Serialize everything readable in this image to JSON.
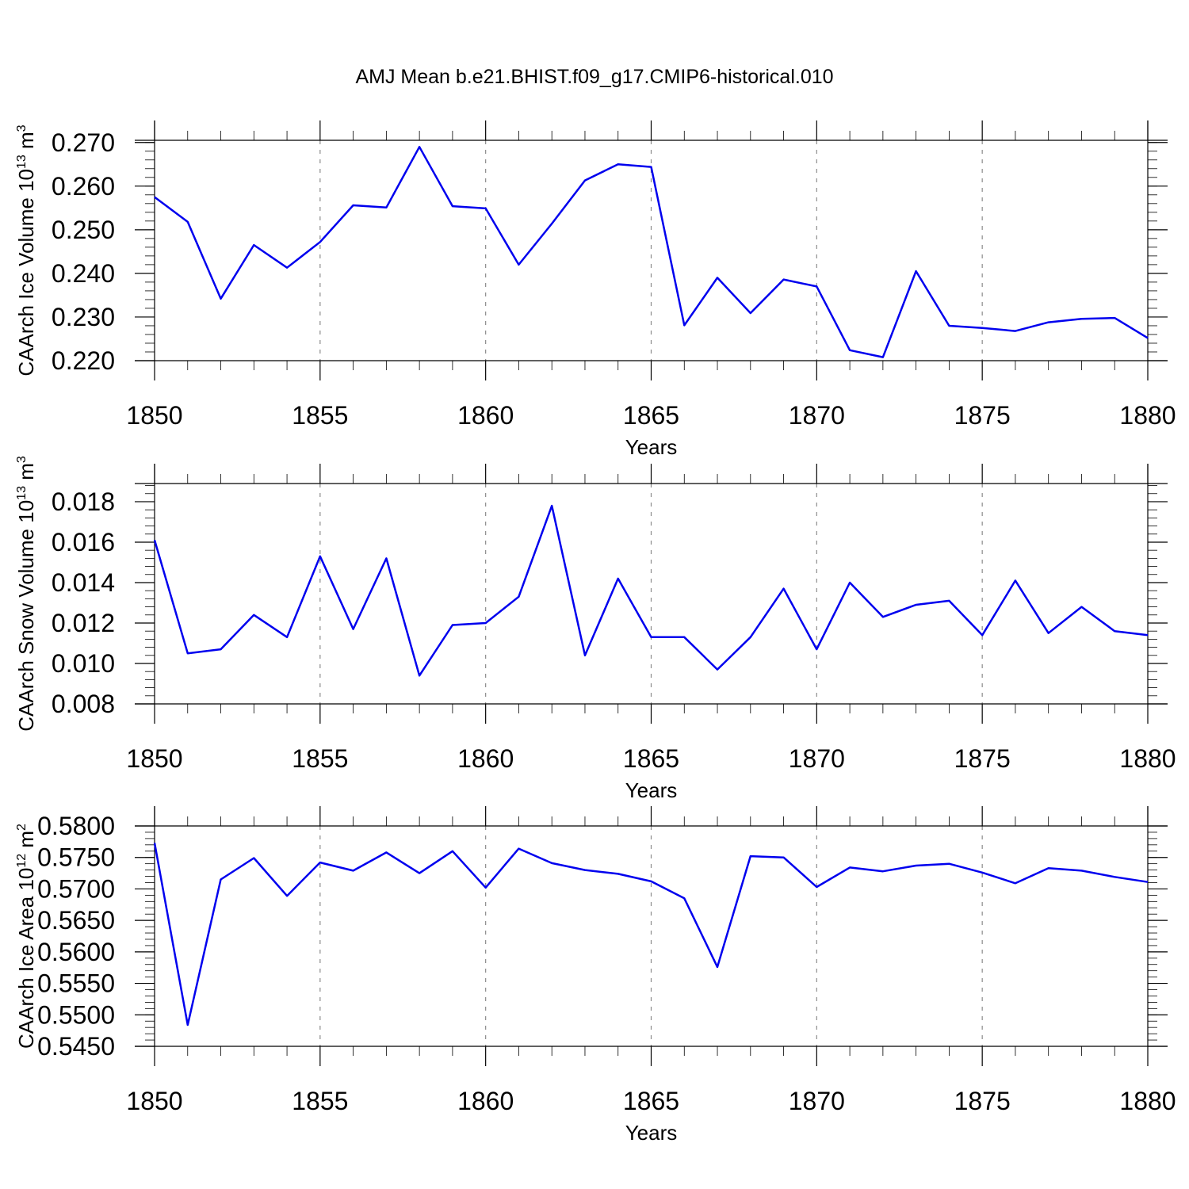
{
  "title": "AMJ Mean b.e21.BHIST.f09_g17.CMIP6-historical.010",
  "colors": {
    "line": "#0000ee",
    "frame": "#000000",
    "grid": "#8c8c8c"
  },
  "chart_data": [
    {
      "type": "line",
      "ylabel": "CAArch Ice Volume 10",
      "ylabel_sup": "13",
      "ylabel_unit": " m",
      "ylabel_unit_sup": "3",
      "xlabel": "Years",
      "xlim": [
        1850,
        1880
      ],
      "ylim": [
        0.22,
        0.2705
      ],
      "yticks": [
        "0.220",
        "0.230",
        "0.240",
        "0.250",
        "0.260",
        "0.270"
      ],
      "ytick_values": [
        0.22,
        0.23,
        0.24,
        0.25,
        0.26,
        0.27
      ],
      "xticks": [
        "1850",
        "1855",
        "1860",
        "1865",
        "1870",
        "1875",
        "1880"
      ],
      "xtick_values": [
        1850,
        1855,
        1860,
        1865,
        1870,
        1875,
        1880
      ],
      "grid": "vertical dashed at major x ticks",
      "x": [
        1850,
        1851,
        1852,
        1853,
        1854,
        1855,
        1856,
        1857,
        1858,
        1859,
        1860,
        1861,
        1862,
        1863,
        1864,
        1865,
        1866,
        1867,
        1868,
        1869,
        1870,
        1871,
        1872,
        1873,
        1874,
        1875,
        1876,
        1877,
        1878,
        1879,
        1880
      ],
      "series": [
        {
          "values": [
            0.2575,
            0.2518,
            0.2342,
            0.2465,
            0.2413,
            0.2472,
            0.2556,
            0.2551,
            0.269,
            0.2554,
            0.2549,
            0.242,
            0.2514,
            0.2613,
            0.265,
            0.2644,
            0.2281,
            0.239,
            0.2309,
            0.2386,
            0.237,
            0.2224,
            0.2208,
            0.2405,
            0.228,
            0.2275,
            0.2268,
            0.2288,
            0.2296,
            0.2298,
            0.2252
          ]
        }
      ]
    },
    {
      "type": "line",
      "ylabel": "CAArch Snow Volume 10",
      "ylabel_sup": "13",
      "ylabel_unit": " m",
      "ylabel_unit_sup": "3",
      "xlabel": "Years",
      "xlim": [
        1850,
        1880
      ],
      "ylim": [
        0.008,
        0.0189
      ],
      "yticks": [
        "0.008",
        "0.010",
        "0.012",
        "0.014",
        "0.016",
        "0.018"
      ],
      "ytick_values": [
        0.008,
        0.01,
        0.012,
        0.014,
        0.016,
        0.018
      ],
      "xticks": [
        "1850",
        "1855",
        "1860",
        "1865",
        "1870",
        "1875",
        "1880"
      ],
      "xtick_values": [
        1850,
        1855,
        1860,
        1865,
        1870,
        1875,
        1880
      ],
      "grid": "vertical dashed at major x ticks",
      "x": [
        1850,
        1851,
        1852,
        1853,
        1854,
        1855,
        1856,
        1857,
        1858,
        1859,
        1860,
        1861,
        1862,
        1863,
        1864,
        1865,
        1866,
        1867,
        1868,
        1869,
        1870,
        1871,
        1872,
        1873,
        1874,
        1875,
        1876,
        1877,
        1878,
        1879,
        1880
      ],
      "series": [
        {
          "values": [
            0.0161,
            0.0105,
            0.0107,
            0.0124,
            0.0113,
            0.0153,
            0.0117,
            0.0152,
            0.0094,
            0.0119,
            0.012,
            0.0133,
            0.0178,
            0.0104,
            0.0142,
            0.0113,
            0.0113,
            0.0097,
            0.0113,
            0.0137,
            0.0107,
            0.014,
            0.0123,
            0.0129,
            0.0131,
            0.0114,
            0.0141,
            0.0115,
            0.0128,
            0.0116,
            0.0114
          ]
        }
      ]
    },
    {
      "type": "line",
      "ylabel": "CAArch Ice Area 10",
      "ylabel_sup": "12",
      "ylabel_unit": " m",
      "ylabel_unit_sup": "2",
      "xlabel": "Years",
      "xlim": [
        1850,
        1880
      ],
      "ylim": [
        0.545,
        0.58
      ],
      "yticks": [
        "0.5450",
        "0.5500",
        "0.5550",
        "0.5600",
        "0.5650",
        "0.5700",
        "0.5750",
        "0.5800"
      ],
      "ytick_values": [
        0.545,
        0.55,
        0.555,
        0.56,
        0.565,
        0.57,
        0.575,
        0.58
      ],
      "xticks": [
        "1850",
        "1855",
        "1860",
        "1865",
        "1870",
        "1875",
        "1880"
      ],
      "xtick_values": [
        1850,
        1855,
        1860,
        1865,
        1870,
        1875,
        1880
      ],
      "grid": "vertical dashed at major x ticks",
      "x": [
        1850,
        1851,
        1852,
        1853,
        1854,
        1855,
        1856,
        1857,
        1858,
        1859,
        1860,
        1861,
        1862,
        1863,
        1864,
        1865,
        1866,
        1867,
        1868,
        1869,
        1870,
        1871,
        1872,
        1873,
        1874,
        1875,
        1876,
        1877,
        1878,
        1879,
        1880
      ],
      "series": [
        {
          "values": [
            0.5773,
            0.5484,
            0.5715,
            0.5749,
            0.5689,
            0.5742,
            0.5729,
            0.5758,
            0.5725,
            0.576,
            0.5702,
            0.5764,
            0.5741,
            0.573,
            0.5724,
            0.5712,
            0.5685,
            0.5576,
            0.5752,
            0.575,
            0.5703,
            0.5734,
            0.5728,
            0.5737,
            0.574,
            0.5726,
            0.5709,
            0.5733,
            0.5729,
            0.5719,
            0.5711
          ]
        }
      ]
    }
  ]
}
